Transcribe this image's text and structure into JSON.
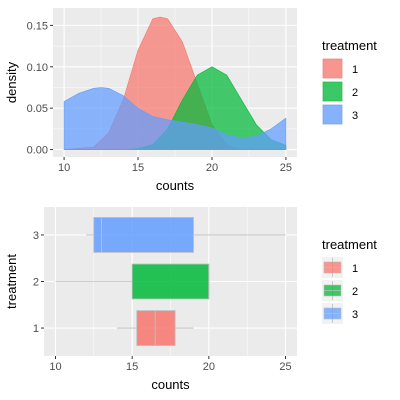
{
  "chart_data": [
    {
      "type": "area",
      "subtype": "density",
      "xlabel": "counts",
      "ylabel": "density",
      "xlim": [
        9.25,
        25.75
      ],
      "ylim": [
        -0.009,
        0.171
      ],
      "xticks": [
        10,
        15,
        20,
        25
      ],
      "yticks": [
        0.0,
        0.05,
        0.1,
        0.15
      ],
      "ytick_labels": [
        "0.00",
        "0.05",
        "0.10",
        "0.15"
      ],
      "grid": true,
      "legend": {
        "title": "treatment",
        "placement": "right",
        "items": [
          "1",
          "2",
          "3"
        ]
      },
      "series": [
        {
          "name": "1",
          "color": "#F8766D",
          "x": [
            10,
            12,
            13,
            14,
            15,
            16,
            16.5,
            17,
            18,
            19,
            20,
            21,
            22,
            25
          ],
          "y": [
            0.0,
            0.003,
            0.02,
            0.06,
            0.12,
            0.158,
            0.16,
            0.158,
            0.13,
            0.08,
            0.03,
            0.005,
            0.0,
            0.0
          ]
        },
        {
          "name": "2",
          "color": "#00BA38",
          "x": [
            10,
            12,
            14,
            15,
            16,
            17,
            18,
            19,
            20,
            21,
            22,
            23,
            24,
            25
          ],
          "y": [
            0.0,
            0.0,
            0.0,
            0.001,
            0.006,
            0.025,
            0.06,
            0.09,
            0.1,
            0.09,
            0.06,
            0.03,
            0.012,
            0.005
          ]
        },
        {
          "name": "3",
          "color": "#619CFF",
          "x": [
            10,
            11,
            12,
            12.5,
            13,
            14,
            15,
            16,
            17,
            18,
            19,
            20,
            21,
            22,
            23,
            24,
            25
          ],
          "y": [
            0.058,
            0.068,
            0.074,
            0.075,
            0.074,
            0.065,
            0.05,
            0.04,
            0.036,
            0.033,
            0.03,
            0.026,
            0.018,
            0.014,
            0.016,
            0.025,
            0.038
          ]
        }
      ]
    },
    {
      "type": "box",
      "orientation": "horizontal",
      "xlabel": "counts",
      "ylabel": "treatment",
      "xlim": [
        9.25,
        25.75
      ],
      "xticks": [
        10,
        15,
        20,
        25
      ],
      "categories": [
        "1",
        "2",
        "3"
      ],
      "grid": true,
      "legend": {
        "title": "treatment",
        "placement": "right",
        "items": [
          "1",
          "2",
          "3"
        ]
      },
      "series": [
        {
          "name": "1",
          "color": "#F8766D",
          "min": 14,
          "q1": 15.3,
          "median": 16.5,
          "q3": 17.8,
          "max": 19
        },
        {
          "name": "2",
          "color": "#00BA38",
          "min": 10,
          "q1": 15,
          "median": 20,
          "q3": 20,
          "max": 20
        },
        {
          "name": "3",
          "color": "#619CFF",
          "min": 12,
          "q1": 12.5,
          "median": 13,
          "q3": 19,
          "max": 25
        }
      ]
    }
  ]
}
